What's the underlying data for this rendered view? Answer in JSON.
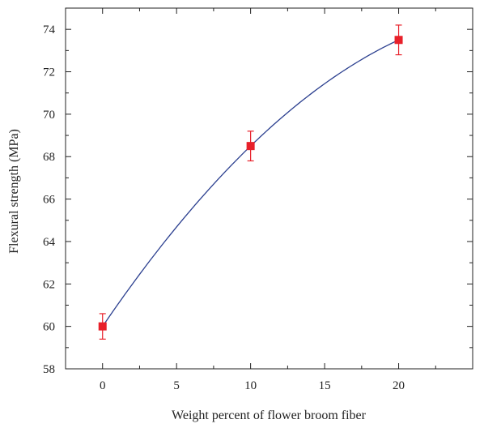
{
  "chart_data": {
    "type": "scatter",
    "xlabel": "Weight percent of flower broom fiber",
    "ylabel": "Flexural strength (MPa)",
    "xlim": [
      -2.5,
      25
    ],
    "ylim": [
      58,
      75
    ],
    "xticks": [
      0,
      5,
      10,
      15,
      20
    ],
    "yticks": [
      58,
      60,
      62,
      64,
      66,
      68,
      70,
      72,
      74
    ],
    "grid": false,
    "series": [
      {
        "x": [
          0,
          10,
          20
        ],
        "y": [
          60.0,
          68.5,
          73.5
        ],
        "error": [
          0.6,
          0.7,
          0.7
        ],
        "marker": "square",
        "color": "#e8202a"
      }
    ],
    "fit_curve": {
      "color": "#2b3f8f",
      "x": [
        0,
        10,
        20
      ],
      "y": [
        60.0,
        68.5,
        73.5
      ]
    }
  }
}
